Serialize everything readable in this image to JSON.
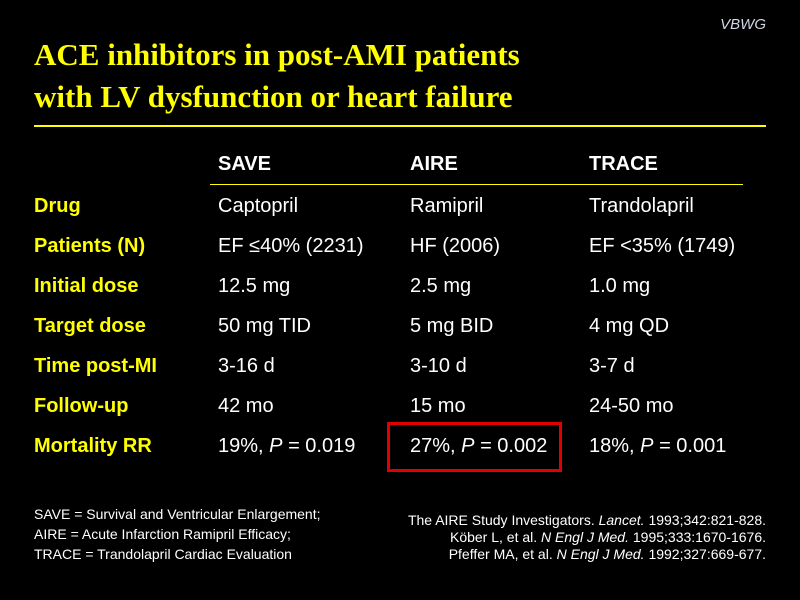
{
  "brand": "VBWG",
  "title_line1": "ACE inhibitors in post-AMI patients",
  "title_line2": "with LV dysfunction or heart failure",
  "columns": [
    "SAVE",
    "AIRE",
    "TRACE"
  ],
  "rows": [
    {
      "label": "Drug",
      "values": [
        "Captopril",
        "Ramipril",
        "Trandolapril"
      ]
    },
    {
      "label": "Patients (N)",
      "values": [
        "EF ≤40% (2231)",
        "HF (2006)",
        "EF <35% (1749)"
      ]
    },
    {
      "label": "Initial dose",
      "values": [
        "12.5 mg",
        "2.5 mg",
        "1.0 mg"
      ]
    },
    {
      "label": "Target dose",
      "values": [
        "50 mg TID",
        "5 mg BID",
        "4 mg QD"
      ]
    },
    {
      "label": "Time post-MI",
      "values": [
        "3-16 d",
        "3-10 d",
        "3-7 d"
      ]
    },
    {
      "label": "Follow-up",
      "values": [
        "42 mo",
        "15 mo",
        "24-50 mo"
      ]
    }
  ],
  "mortality": {
    "label": "Mortality RR",
    "values": [
      {
        "pct": "19%,",
        "p": "P",
        "rest": "= 0.019"
      },
      {
        "pct": "27%,",
        "p": "P",
        "rest": "= 0.002"
      },
      {
        "pct": "18%,",
        "p": "P",
        "rest": "= 0.001"
      }
    ]
  },
  "abbreviations": [
    "SAVE = Survival and Ventricular Enlargement;",
    "AIRE = Acute Infarction Ramipril Efficacy;",
    "TRACE = Trandolapril Cardiac Evaluation"
  ],
  "references": [
    {
      "pre": "The AIRE Study Investigators.",
      "journal": "Lancet.",
      "post": "1993;342:821-828."
    },
    {
      "pre": "Köber L, et al.",
      "journal": "N Engl J Med.",
      "post": "1995;333:1670-1676."
    },
    {
      "pre": "Pfeffer MA, et al.",
      "journal": "N Engl J Med.",
      "post": "1992;327:669-677."
    }
  ]
}
